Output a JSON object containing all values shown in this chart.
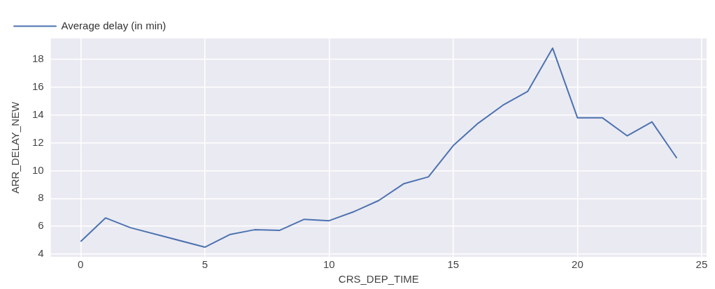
{
  "chart_data": {
    "type": "line",
    "xlabel": "CRS_DEP_TIME",
    "ylabel": "ARR_DELAY_NEW",
    "x": [
      0,
      1,
      2,
      5,
      6,
      7,
      8,
      9,
      10,
      11,
      12,
      13,
      14,
      15,
      16,
      17,
      18,
      19,
      20,
      21,
      22,
      23,
      24
    ],
    "series": [
      {
        "name": "Average delay (in min)",
        "color": "#4c72b0",
        "values": [
          4.9,
          6.6,
          5.9,
          4.5,
          5.4,
          5.75,
          5.7,
          6.5,
          6.4,
          7.05,
          7.85,
          9.05,
          9.55,
          11.8,
          13.4,
          14.7,
          15.7,
          18.8,
          13.8,
          13.8,
          12.5,
          13.5,
          10.9
        ]
      }
    ],
    "xlim": [
      -1.2,
      25.2
    ],
    "xticks": [
      0,
      5,
      10,
      15,
      20,
      25
    ],
    "ylim": [
      3.8,
      19.5
    ],
    "yticks": [
      4,
      6,
      8,
      10,
      12,
      14,
      16,
      18
    ],
    "grid": true,
    "legend": "top left",
    "marker": "none",
    "line_style": "solid"
  }
}
